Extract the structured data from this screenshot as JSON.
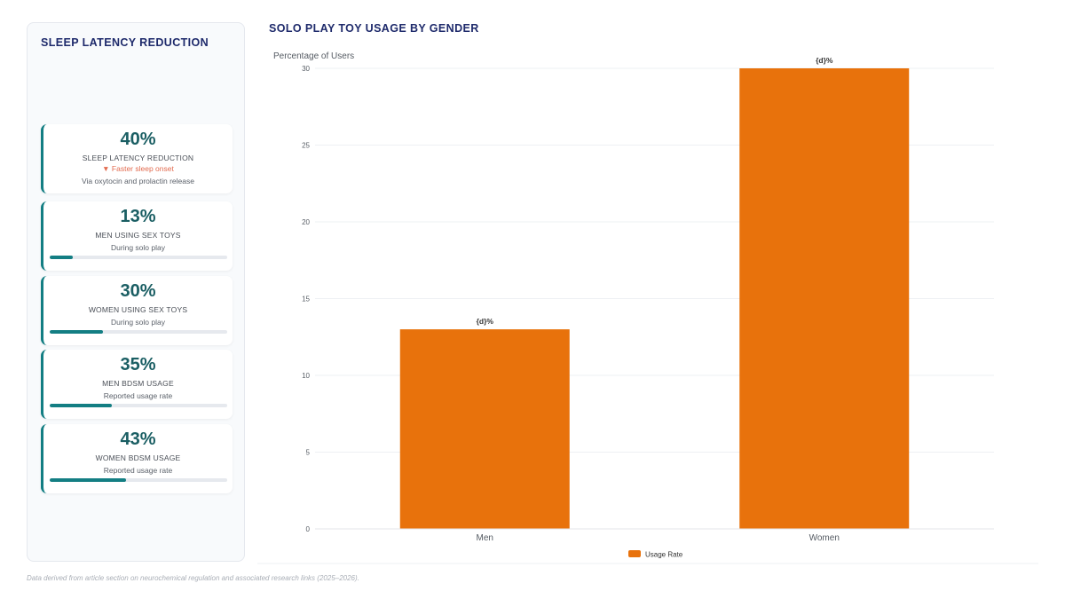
{
  "sidebar": {
    "title": "SLEEP LATENCY REDUCTION",
    "cards": [
      {
        "value": "40%",
        "label": "SLEEP LATENCY REDUCTION",
        "trend": "▼ Faster sleep onset",
        "note": "Via oxytocin and prolactin release"
      },
      {
        "value": "13%",
        "label": "MEN USING SEX TOYS",
        "note": "During solo play",
        "progress": 0.13
      },
      {
        "value": "30%",
        "label": "WOMEN USING SEX TOYS",
        "note": "During solo play",
        "progress": 0.3
      },
      {
        "value": "35%",
        "label": "MEN BDSM USAGE",
        "note": "Reported usage rate",
        "progress": 0.35
      },
      {
        "value": "43%",
        "label": "WOMEN BDSM USAGE",
        "note": "Reported usage rate",
        "progress": 0.43
      }
    ]
  },
  "chart_title": "SOLO PLAY TOY USAGE BY GENDER",
  "footer": "Data derived from article section on neurochemical regulation and associated research links (2025–2026).",
  "colors": {
    "bar": "#e8720c",
    "accent": "#137e83",
    "title": "#1e2a6b"
  },
  "chart_data": {
    "type": "bar",
    "categories": [
      "Men",
      "Women"
    ],
    "series": [
      {
        "name": "Usage Rate",
        "values": [
          13,
          30
        ]
      }
    ],
    "data_labels": [
      "{d}%",
      "{d}%"
    ],
    "ylabel": "Percentage of Users",
    "ylim": [
      0,
      30
    ],
    "yticks": [
      0,
      5,
      10,
      15,
      20,
      25,
      30
    ],
    "grid": true,
    "legend": "bottom-center"
  }
}
